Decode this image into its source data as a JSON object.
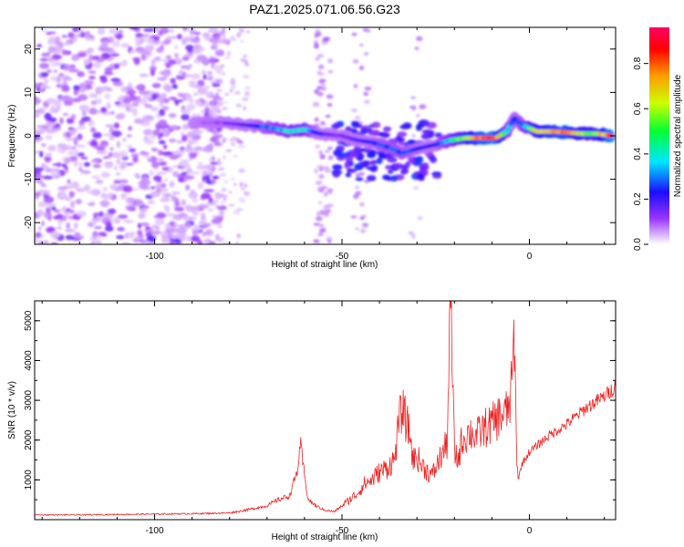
{
  "title": "PAZ1.2025.071.06.56.G23",
  "chart_data": [
    {
      "type": "heatmap",
      "xlabel": "Height of straight line (km)",
      "ylabel": "Frequency (Hz)",
      "xlim": [
        -132,
        23
      ],
      "ylim": [
        -25,
        25
      ],
      "xticks": [
        -100,
        -50,
        0
      ],
      "yticks": [
        -20,
        -10,
        0,
        10,
        20
      ],
      "colorbar": {
        "label": "Normalized spectral amplitude",
        "range": [
          0,
          0.96
        ],
        "ticks": [
          0.0,
          0.2,
          0.4,
          0.6,
          0.8
        ],
        "colormap": [
          "#ffffff",
          "#9933ff",
          "#1a0dff",
          "#00e6ff",
          "#00ff33",
          "#ccff00",
          "#ff9900",
          "#ff0000",
          "#ff0066"
        ]
      },
      "ridge": [
        {
          "x": -90,
          "y": 3,
          "a": 0.08
        },
        {
          "x": -82,
          "y": 3,
          "a": 0.12
        },
        {
          "x": -76,
          "y": 2.5,
          "a": 0.2
        },
        {
          "x": -70,
          "y": 2,
          "a": 0.3
        },
        {
          "x": -64,
          "y": 1,
          "a": 0.4
        },
        {
          "x": -60,
          "y": 1.5,
          "a": 0.42
        },
        {
          "x": -56,
          "y": 0.5,
          "a": 0.2
        },
        {
          "x": -50,
          "y": 0,
          "a": 0.15
        },
        {
          "x": -46,
          "y": -1,
          "a": 0.18
        },
        {
          "x": -42,
          "y": -1.5,
          "a": 0.25
        },
        {
          "x": -38,
          "y": -2.5,
          "a": 0.3
        },
        {
          "x": -34,
          "y": -4,
          "a": 0.3
        },
        {
          "x": -30,
          "y": -3,
          "a": 0.25
        },
        {
          "x": -25,
          "y": -2,
          "a": 0.22
        },
        {
          "x": -21,
          "y": -1,
          "a": 0.4
        },
        {
          "x": -17,
          "y": -0.5,
          "a": 0.6
        },
        {
          "x": -13,
          "y": -0.5,
          "a": 0.8
        },
        {
          "x": -9,
          "y": -0.5,
          "a": 0.85
        },
        {
          "x": -6,
          "y": 1,
          "a": 0.4
        },
        {
          "x": -4,
          "y": 4,
          "a": 0.25
        },
        {
          "x": -2,
          "y": 2.5,
          "a": 0.3
        },
        {
          "x": 2,
          "y": 1,
          "a": 0.65
        },
        {
          "x": 6,
          "y": 1,
          "a": 0.75
        },
        {
          "x": 10,
          "y": 0.8,
          "a": 0.8
        },
        {
          "x": 14,
          "y": 0.5,
          "a": 0.6
        },
        {
          "x": 18,
          "y": 0.5,
          "a": 0.55
        },
        {
          "x": 22,
          "y": 0,
          "a": 0.9
        }
      ]
    },
    {
      "type": "line",
      "xlabel": "Height of straight line (km)",
      "ylabel": "SNR (10 * v/v)",
      "xlim": [
        -132,
        23
      ],
      "ylim": [
        0,
        5500
      ],
      "xticks": [
        -100,
        -50,
        0
      ],
      "yticks": [
        1000,
        2000,
        3000,
        4000,
        5000
      ],
      "series": [
        {
          "color": "#ee2222",
          "x": [
            -132,
            -120,
            -110,
            -100,
            -90,
            -80,
            -75,
            -70,
            -67,
            -64,
            -62,
            -61,
            -60,
            -59,
            -57,
            -55,
            -52,
            -50,
            -48,
            -46,
            -44,
            -42,
            -40,
            -38,
            -36,
            -35,
            -34,
            -33,
            -32,
            -31,
            -30,
            -29,
            -28,
            -27,
            -26,
            -24,
            -22,
            -21,
            -20,
            -19,
            -18,
            -16,
            -14,
            -12,
            -10,
            -8,
            -6,
            -5,
            -4,
            -3.5,
            -3,
            -2,
            0,
            5,
            10,
            15,
            20,
            23
          ],
          "y": [
            120,
            120,
            130,
            140,
            150,
            170,
            250,
            350,
            500,
            600,
            1200,
            1850,
            1100,
            500,
            350,
            250,
            200,
            350,
            500,
            650,
            900,
            1000,
            1200,
            1300,
            1500,
            2300,
            2800,
            2500,
            2200,
            1500,
            1600,
            1400,
            1300,
            1200,
            1100,
            1500,
            1900,
            5500,
            1700,
            1500,
            2000,
            2200,
            2100,
            2300,
            2400,
            2600,
            2700,
            3000,
            4600,
            2000,
            1000,
            1400,
            1700,
            2100,
            2400,
            2800,
            3100,
            3350
          ]
        }
      ]
    }
  ]
}
